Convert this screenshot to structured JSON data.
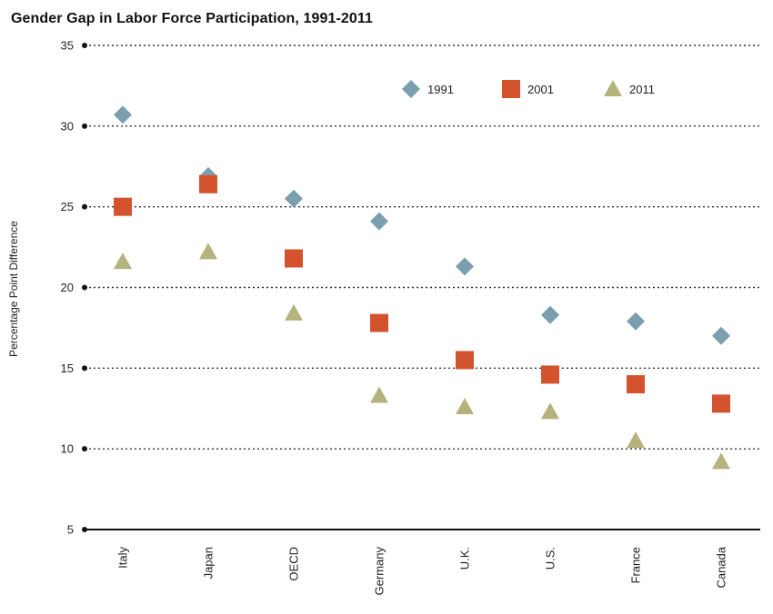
{
  "chart_data": {
    "type": "scatter",
    "title": "Gender Gap in Labor Force Participation, 1991-2011",
    "xlabel": "",
    "ylabel": "Percentage Point Difference",
    "ylim": [
      5,
      35
    ],
    "yticks": [
      5,
      10,
      15,
      20,
      25,
      30,
      35
    ],
    "grid": true,
    "legend_position": "top-right",
    "categories": [
      "Italy",
      "Japan",
      "OECD",
      "Germany",
      "U.K.",
      "U.S.",
      "France",
      "Canada"
    ],
    "series": [
      {
        "name": "1991",
        "marker": "diamond",
        "color": "#7b9fae",
        "values": [
          30.7,
          26.9,
          25.5,
          24.1,
          21.3,
          18.3,
          17.9,
          17.0
        ]
      },
      {
        "name": "2001",
        "marker": "square",
        "color": "#d4532f",
        "values": [
          25.0,
          26.4,
          21.8,
          17.8,
          15.5,
          14.6,
          14.0,
          12.8
        ]
      },
      {
        "name": "2011",
        "marker": "triangle",
        "color": "#b5b37d",
        "values": [
          21.6,
          22.2,
          18.4,
          13.3,
          12.6,
          12.3,
          10.5,
          9.2
        ]
      }
    ]
  }
}
